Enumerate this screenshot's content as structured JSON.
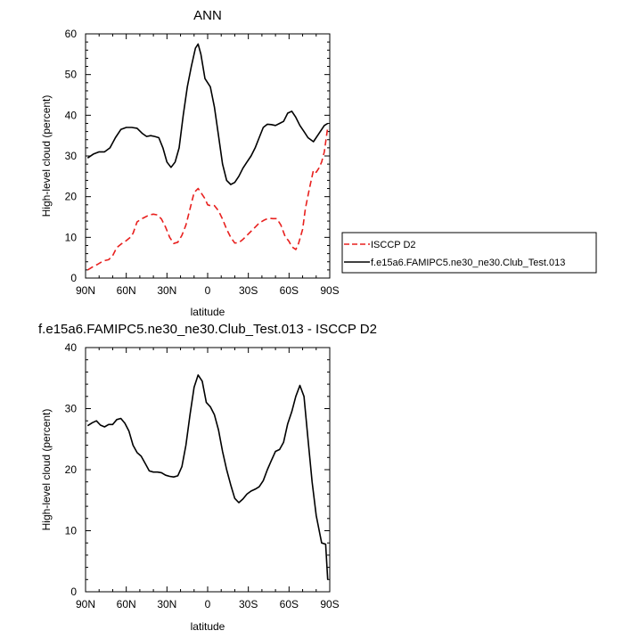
{
  "chart_data": [
    {
      "type": "line",
      "title": "ANN",
      "xlabel": "latitude",
      "ylabel": "High-level cloud (percent)",
      "xlim": [
        90,
        -90
      ],
      "ylim": [
        0,
        60
      ],
      "x_ticks": [
        {
          "v": 90,
          "label": "90N"
        },
        {
          "v": 60,
          "label": "60N"
        },
        {
          "v": 30,
          "label": "30N"
        },
        {
          "v": 0,
          "label": "0"
        },
        {
          "v": -30,
          "label": "30S"
        },
        {
          "v": -60,
          "label": "60S"
        },
        {
          "v": -90,
          "label": "90S"
        }
      ],
      "y_ticks": [
        0,
        10,
        20,
        30,
        40,
        50,
        60
      ],
      "legend_position": "right",
      "series": [
        {
          "name": "ISCCP D2",
          "color": "#e8201e",
          "dash": true,
          "x": [
            88.5,
            85,
            81,
            77,
            73,
            70,
            67,
            64,
            60,
            57,
            55,
            52,
            49,
            46,
            43,
            40,
            37,
            34,
            31,
            28,
            25,
            22,
            19,
            16,
            13,
            10,
            7,
            5,
            2,
            0,
            -2,
            -5,
            -8,
            -11,
            -14,
            -17,
            -20,
            -23,
            -26,
            -29,
            -32,
            -35,
            -38,
            -42,
            -45,
            -48,
            -51,
            -54,
            -57,
            -60,
            -62,
            -65,
            -67,
            -70,
            -72,
            -75,
            -78,
            -80,
            -82,
            -84,
            -86,
            -88.5
          ],
          "y": [
            2,
            2.7,
            3.4,
            4.2,
            4.5,
            5.5,
            7.5,
            8.3,
            9.2,
            10,
            11,
            13.8,
            14.5,
            15,
            15.5,
            15.7,
            15.5,
            14.5,
            12.5,
            10,
            8.5,
            8.8,
            10.5,
            13,
            17,
            21,
            22,
            21,
            19.5,
            18,
            17.8,
            17.8,
            16.5,
            14.5,
            12,
            10,
            8.6,
            8.7,
            9.5,
            10.5,
            11.5,
            12.5,
            13.5,
            14.3,
            14.7,
            14.6,
            14.6,
            13,
            10.3,
            9,
            7.7,
            7,
            8.5,
            12,
            17,
            22,
            26.5,
            26,
            27,
            28.5,
            31,
            37
          ]
        },
        {
          "name": "f.e15a6.FAMIPC5.ne30_ne30.Club_Test.013",
          "color": "#000000",
          "dash": false,
          "x": [
            88.5,
            84,
            80,
            76,
            72,
            68,
            64,
            60,
            56,
            52,
            48,
            45,
            42,
            39,
            36,
            33,
            30,
            27,
            24,
            21,
            18,
            15,
            12,
            9,
            7,
            5,
            2,
            0,
            -2,
            -5,
            -8,
            -11,
            -14,
            -17,
            -20,
            -23,
            -26,
            -29,
            -32,
            -35,
            -38,
            -41,
            -44,
            -47,
            -50,
            -53,
            -56,
            -59,
            -62,
            -65,
            -68,
            -71,
            -74,
            -78,
            -82,
            -86,
            -88.5
          ],
          "y": [
            29.5,
            30.5,
            31,
            31,
            32,
            34.5,
            36.5,
            37,
            37,
            36.8,
            35.5,
            34.8,
            35,
            34.8,
            34.5,
            32,
            28.5,
            27.2,
            28.5,
            32,
            40,
            47,
            52,
            56.5,
            57.5,
            55,
            49,
            48,
            47,
            42,
            35,
            28,
            24,
            23,
            23.5,
            25,
            27,
            28.5,
            30,
            32,
            34.5,
            37,
            37.8,
            37.7,
            37.5,
            38,
            38.5,
            40.5,
            41,
            39.5,
            37.5,
            36,
            34.5,
            33.5,
            35.5,
            37.5,
            38
          ]
        }
      ]
    },
    {
      "type": "line",
      "title": "f.e15a6.FAMIPC5.ne30_ne30.Club_Test.013 - ISCCP D2",
      "xlabel": "latitude",
      "ylabel": "High-level cloud (percent)",
      "xlim": [
        90,
        -90
      ],
      "ylim": [
        0,
        40
      ],
      "x_ticks": [
        {
          "v": 90,
          "label": "90N"
        },
        {
          "v": 60,
          "label": "60N"
        },
        {
          "v": 30,
          "label": "30N"
        },
        {
          "v": 0,
          "label": "0"
        },
        {
          "v": -30,
          "label": "30S"
        },
        {
          "v": -60,
          "label": "60S"
        },
        {
          "v": -90,
          "label": "90S"
        }
      ],
      "y_ticks": [
        0,
        10,
        20,
        30,
        40
      ],
      "series": [
        {
          "color": "#000000",
          "dash": false,
          "x": [
            88.5,
            85,
            82,
            79,
            76,
            73,
            70,
            67,
            64,
            61,
            58,
            55,
            52,
            49,
            46,
            43,
            40,
            37,
            34,
            31,
            28,
            25,
            22,
            19,
            16,
            13,
            10,
            7,
            4,
            1,
            -2,
            -5,
            -8,
            -11,
            -14,
            -17,
            -20,
            -23,
            -26,
            -29,
            -32,
            -35,
            -38,
            -41,
            -44,
            -47,
            -50,
            -53,
            -56,
            -59,
            -62,
            -65,
            -68,
            -71,
            -74,
            -77,
            -80,
            -84,
            -87,
            -88.5
          ],
          "y": [
            27.2,
            27.7,
            28,
            27.3,
            27,
            27.4,
            27.4,
            28.2,
            28.4,
            27.6,
            26.3,
            24,
            22.8,
            22.2,
            21,
            19.8,
            19.6,
            19.6,
            19.5,
            19.1,
            18.9,
            18.8,
            19,
            20.5,
            24,
            29,
            33.5,
            35.5,
            34.5,
            31,
            30.3,
            29,
            26.5,
            23,
            20,
            17.5,
            15.3,
            14.6,
            15.2,
            16,
            16.5,
            16.8,
            17.2,
            18.2,
            20,
            21.5,
            23,
            23.3,
            24.5,
            27.5,
            29.5,
            32,
            33.8,
            32,
            25,
            18,
            12.5,
            8,
            7.8,
            2
          ]
        }
      ]
    }
  ]
}
